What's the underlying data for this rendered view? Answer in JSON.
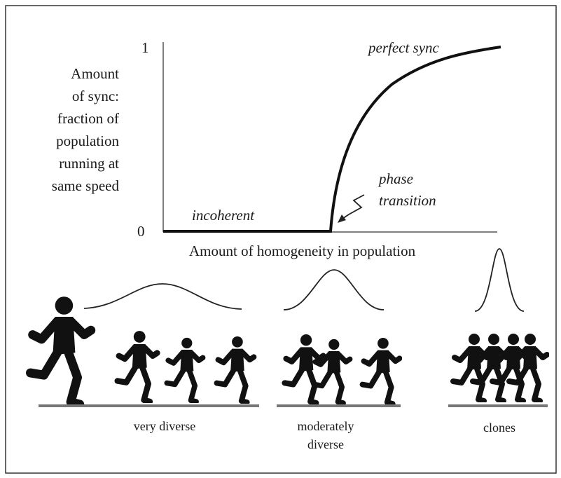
{
  "y_axis": {
    "label_lines": [
      "Amount",
      "of sync:",
      "fraction of",
      "population",
      "running at",
      "same speed"
    ],
    "ticks": [
      "1",
      "0"
    ]
  },
  "x_axis": {
    "label": "Amount of homogeneity in population"
  },
  "annotations": {
    "perfect_sync": "perfect sync",
    "incoherent": "incoherent",
    "phase_transition": [
      "phase",
      "transition"
    ]
  },
  "groups": [
    {
      "label_lines": [
        "very diverse"
      ]
    },
    {
      "label_lines": [
        "moderately",
        "diverse"
      ]
    },
    {
      "label_lines": [
        "clones"
      ]
    }
  ]
}
